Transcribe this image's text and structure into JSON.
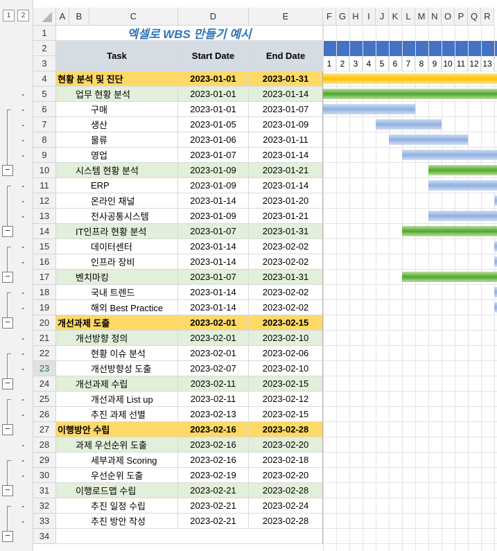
{
  "outline_levels": [
    "1",
    "2"
  ],
  "columns": [
    "A",
    "B",
    "C",
    "D",
    "E",
    "F",
    "G",
    "H",
    "I",
    "J",
    "K",
    "L",
    "M",
    "N",
    "O",
    "P",
    "Q",
    "R"
  ],
  "title": "엑셀로 WBS 만들기 예시",
  "headers": {
    "task": "Task",
    "start": "Start Date",
    "end": "End Date"
  },
  "day_numbers": [
    "1",
    "2",
    "3",
    "4",
    "5",
    "6",
    "7",
    "8",
    "9",
    "10",
    "11",
    "12",
    "13"
  ],
  "row_numbers": [
    "1",
    "2",
    "3",
    "4",
    "5",
    "6",
    "7",
    "8",
    "9",
    "10",
    "11",
    "12",
    "13",
    "14",
    "15",
    "16",
    "17",
    "18",
    "19",
    "20",
    "21",
    "22",
    "23",
    "24",
    "25",
    "26",
    "27",
    "28",
    "29",
    "30",
    "31",
    "32",
    "33",
    "34"
  ],
  "rows": [
    {
      "task": "현황 분석 및 진단",
      "start": "2023-01-01",
      "end": "2023-01-31",
      "level": 1,
      "bar": "gold",
      "from": 1,
      "to": 31
    },
    {
      "task": "업무 현황 분석",
      "start": "2023-01-01",
      "end": "2023-01-14",
      "level": 2,
      "bar": "green",
      "from": 1,
      "to": 14
    },
    {
      "task": "구매",
      "start": "2023-01-01",
      "end": "2023-01-07",
      "level": 3,
      "bar": "blue",
      "from": 1,
      "to": 7
    },
    {
      "task": "생산",
      "start": "2023-01-05",
      "end": "2023-01-09",
      "level": 3,
      "bar": "blue",
      "from": 5,
      "to": 9
    },
    {
      "task": "물류",
      "start": "2023-01-06",
      "end": "2023-01-11",
      "level": 3,
      "bar": "blue",
      "from": 6,
      "to": 11
    },
    {
      "task": "영업",
      "start": "2023-01-07",
      "end": "2023-01-14",
      "level": 3,
      "bar": "blue",
      "from": 7,
      "to": 14
    },
    {
      "task": "시스템 현황 분석",
      "start": "2023-01-09",
      "end": "2023-01-21",
      "level": 2,
      "bar": "green",
      "from": 9,
      "to": 21
    },
    {
      "task": "ERP",
      "start": "2023-01-09",
      "end": "2023-01-14",
      "level": 3,
      "bar": "blue",
      "from": 9,
      "to": 14
    },
    {
      "task": "온라인 채널",
      "start": "2023-01-14",
      "end": "2023-01-20",
      "level": 3,
      "bar": "blue",
      "from": 14,
      "to": 20
    },
    {
      "task": "전사공통시스템",
      "start": "2023-01-09",
      "end": "2023-01-21",
      "level": 3,
      "bar": "blue",
      "from": 9,
      "to": 21
    },
    {
      "task": "IT인프라 현황 분석",
      "start": "2023-01-07",
      "end": "2023-01-31",
      "level": 2,
      "bar": "green",
      "from": 7,
      "to": 31
    },
    {
      "task": "데이터센터",
      "start": "2023-01-14",
      "end": "2023-02-02",
      "level": 3,
      "bar": "blue",
      "from": 14,
      "to": 33
    },
    {
      "task": "인프라 장비",
      "start": "2023-01-14",
      "end": "2023-02-02",
      "level": 3,
      "bar": "blue",
      "from": 14,
      "to": 33
    },
    {
      "task": "벤치마킹",
      "start": "2023-01-07",
      "end": "2023-01-31",
      "level": 2,
      "bar": "green",
      "from": 7,
      "to": 31
    },
    {
      "task": "국내 트렌드",
      "start": "2023-01-14",
      "end": "2023-02-02",
      "level": 3,
      "bar": "blue",
      "from": 14,
      "to": 33
    },
    {
      "task": "해외 Best Practice",
      "start": "2023-01-14",
      "end": "2023-02-02",
      "level": 3,
      "bar": "blue",
      "from": 14,
      "to": 33
    },
    {
      "task": "개선과제 도출",
      "start": "2023-02-01",
      "end": "2023-02-15",
      "level": 1,
      "bar": "none",
      "from": 0,
      "to": 0
    },
    {
      "task": "개선방향 정의",
      "start": "2023-02-01",
      "end": "2023-02-10",
      "level": 2,
      "bar": "none",
      "from": 0,
      "to": 0
    },
    {
      "task": "현황 이슈 분석",
      "start": "2023-02-01",
      "end": "2023-02-06",
      "level": 3,
      "bar": "none",
      "from": 0,
      "to": 0
    },
    {
      "task": "개선방향성 도출",
      "start": "2023-02-07",
      "end": "2023-02-10",
      "level": 3,
      "bar": "none",
      "from": 0,
      "to": 0
    },
    {
      "task": "개선과제 수립",
      "start": "2023-02-11",
      "end": "2023-02-15",
      "level": 2,
      "bar": "none",
      "from": 0,
      "to": 0
    },
    {
      "task": "개선과제 List up",
      "start": "2023-02-11",
      "end": "2023-02-12",
      "level": 3,
      "bar": "none",
      "from": 0,
      "to": 0
    },
    {
      "task": "추진 과제 선별",
      "start": "2023-02-13",
      "end": "2023-02-15",
      "level": 3,
      "bar": "none",
      "from": 0,
      "to": 0
    },
    {
      "task": "이행방안 수립",
      "start": "2023-02-16",
      "end": "2023-02-28",
      "level": 1,
      "bar": "none",
      "from": 0,
      "to": 0
    },
    {
      "task": "과제 우선순위 도출",
      "start": "2023-02-16",
      "end": "2023-02-20",
      "level": 2,
      "bar": "none",
      "from": 0,
      "to": 0
    },
    {
      "task": "세부과제 Scoring",
      "start": "2023-02-16",
      "end": "2023-02-18",
      "level": 3,
      "bar": "none",
      "from": 0,
      "to": 0
    },
    {
      "task": "우선순위 도출",
      "start": "2023-02-19",
      "end": "2023-02-20",
      "level": 3,
      "bar": "none",
      "from": 0,
      "to": 0
    },
    {
      "task": "이행로드맵 수립",
      "start": "2023-02-21",
      "end": "2023-02-28",
      "level": 2,
      "bar": "none",
      "from": 0,
      "to": 0
    },
    {
      "task": "추진 일정 수립",
      "start": "2023-02-21",
      "end": "2023-02-24",
      "level": 3,
      "bar": "none",
      "from": 0,
      "to": 0
    },
    {
      "task": "추진 방안 작성",
      "start": "2023-02-21",
      "end": "2023-02-28",
      "level": 3,
      "bar": "none",
      "from": 0,
      "to": 0
    }
  ],
  "colors": {
    "level1": "#ffd966",
    "level2": "#e2efda",
    "header": "#d6dce4",
    "gantt_header": "#4472c4",
    "title": "#2e75b6"
  }
}
